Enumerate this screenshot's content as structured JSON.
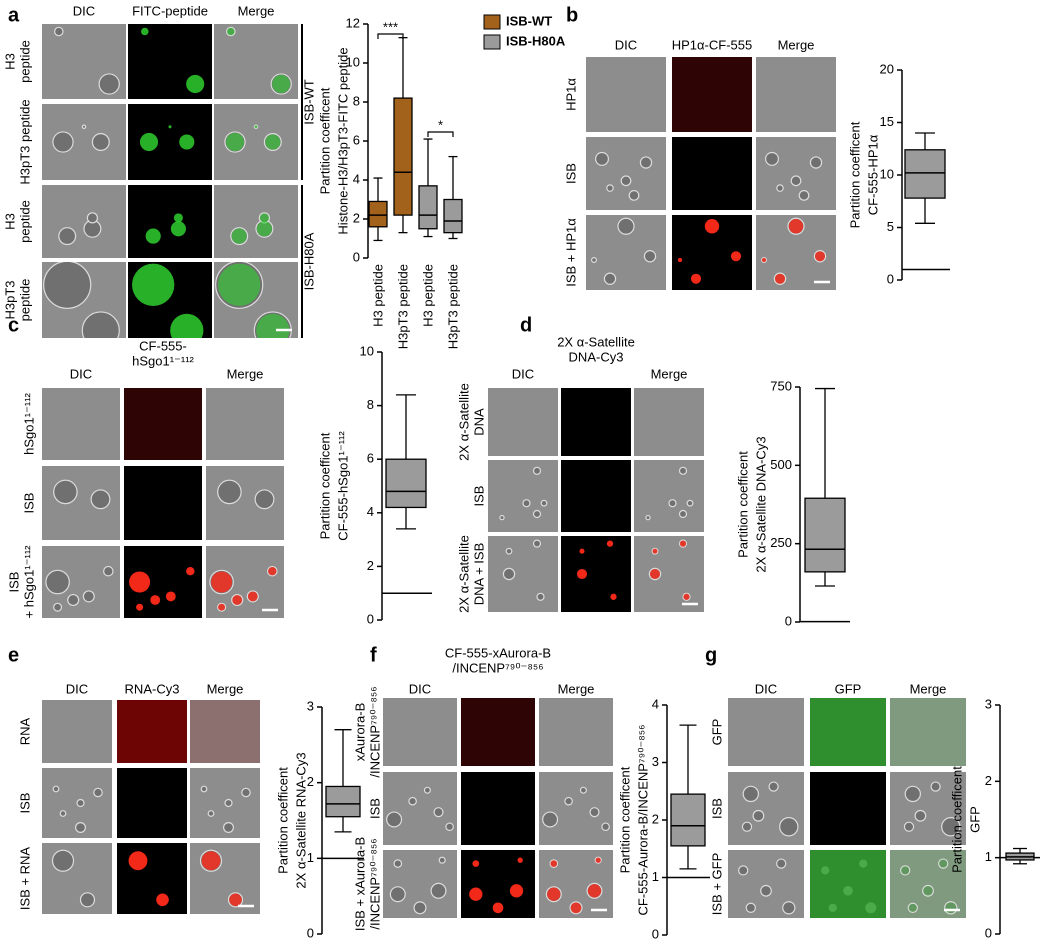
{
  "panels": [
    {
      "letter": "a",
      "columns": [
        [
          "DIC"
        ],
        [
          "FITC-peptide"
        ],
        [
          "Merge"
        ]
      ],
      "rows": [
        [
          "H3",
          "peptide"
        ],
        [
          "H3pT3 peptide"
        ],
        [
          "H3",
          "peptide"
        ],
        [
          "H3pT3",
          "peptide"
        ]
      ],
      "groups": [
        "ISB-WT",
        "ISB-H80A"
      ]
    },
    {
      "letter": "b",
      "columns": [
        [
          "DIC"
        ],
        [
          "HP1α-CF-555"
        ],
        [
          "Merge"
        ]
      ],
      "rows": [
        [
          "HP1α"
        ],
        [
          "ISB"
        ],
        [
          "ISB + HP1α"
        ]
      ]
    },
    {
      "letter": "c",
      "columns": [
        [
          "DIC"
        ],
        [
          "CF-555-",
          "hSgo1¹⁻¹¹²"
        ],
        [
          "Merge"
        ]
      ],
      "rows": [
        [
          "hSgo1¹⁻¹¹²"
        ],
        [
          "ISB"
        ],
        [
          "ISB",
          "+ hSgo1¹⁻¹¹²"
        ]
      ]
    },
    {
      "letter": "d",
      "columns": [
        [
          "DIC"
        ],
        [
          "2X α-Satellite",
          "DNA-Cy3"
        ],
        [
          "Merge"
        ]
      ],
      "rows": [
        [
          "2X α-Satellite",
          "DNA"
        ],
        [
          "ISB"
        ],
        [
          "2X α-Satellite",
          "DNA + ISB"
        ]
      ]
    },
    {
      "letter": "e",
      "columns": [
        [
          "DIC"
        ],
        [
          "RNA-Cy3"
        ],
        [
          "Merge"
        ]
      ],
      "rows": [
        [
          "RNA"
        ],
        [
          "ISB"
        ],
        [
          "ISB + RNA"
        ]
      ]
    },
    {
      "letter": "f",
      "columns": [
        [
          "DIC"
        ],
        [
          "CF-555-xAurora-B",
          "/INCENP⁷⁹⁰⁻⁸⁵⁶"
        ],
        [
          "Merge"
        ]
      ],
      "rows": [
        [
          "xAurora-B",
          "/INCENP⁷⁹⁰⁻⁸⁵⁶"
        ],
        [
          "ISB"
        ],
        [
          "ISB + xAurora-B",
          "/INCENP⁷⁹⁰⁻⁸⁵⁶"
        ]
      ]
    },
    {
      "letter": "g",
      "columns": [
        [
          "DIC"
        ],
        [
          "GFP"
        ],
        [
          "Merge"
        ]
      ],
      "rows": [
        [
          "GFP"
        ],
        [
          "ISB"
        ],
        [
          "ISB + GFP"
        ]
      ]
    }
  ],
  "chart_data": [
    {
      "type": "box",
      "ylabel": [
        "Partition coefficent",
        "Histone-H3/H3pT3-FITC peptide"
      ],
      "ylim": [
        0,
        12
      ],
      "yticks": [
        0,
        2,
        4,
        6,
        8,
        10,
        12
      ],
      "categories": [
        "H3 peptide",
        "H3pT3 peptide",
        "H3 peptide",
        "H3pT3 peptide"
      ],
      "legend": "right",
      "annotations": [
        "***",
        "*"
      ],
      "series": [
        {
          "name": "ISB-WT",
          "color": "#a3621c",
          "boxes": [
            {
              "min": 0.9,
              "q1": 1.6,
              "median": 2.2,
              "q3": 2.9,
              "max": 4.1
            },
            {
              "min": 1.3,
              "q1": 2.2,
              "median": 4.4,
              "q3": 8.2,
              "max": 11.3
            },
            null,
            null
          ]
        },
        {
          "name": "ISB-H80A",
          "color": "#9b9b9b",
          "boxes": [
            null,
            null,
            {
              "min": 1.1,
              "q1": 1.5,
              "median": 2.2,
              "q3": 3.7,
              "max": 6.1
            },
            {
              "min": 1.0,
              "q1": 1.3,
              "median": 1.9,
              "q3": 3.0,
              "max": 5.2
            }
          ]
        }
      ]
    },
    {
      "type": "box",
      "ylabel": [
        "Partition coefficent",
        "CF-555-HP1α"
      ],
      "ylim": [
        0,
        20
      ],
      "yticks": [
        0,
        5,
        10,
        15,
        20
      ],
      "reference_line": 1,
      "color": "#9b9b9b",
      "boxes": [
        {
          "min": 5.4,
          "q1": 7.8,
          "median": 10.2,
          "q3": 12.4,
          "max": 14
        }
      ]
    },
    {
      "type": "box",
      "ylabel": [
        "Partition coefficent",
        "CF-555-hSgo1¹⁻¹¹²"
      ],
      "ylim": [
        0,
        10
      ],
      "yticks": [
        0,
        2,
        4,
        6,
        8,
        10
      ],
      "reference_line": 1,
      "color": "#9b9b9b",
      "boxes": [
        {
          "min": 3.4,
          "q1": 4.2,
          "median": 4.8,
          "q3": 6.0,
          "max": 8.4
        }
      ]
    },
    {
      "type": "box",
      "ylabel": [
        "Partition coefficent",
        "2X α-Satellite DNA-Cy3"
      ],
      "ylim": [
        0,
        750
      ],
      "yticks": [
        0,
        250,
        500,
        750
      ],
      "reference_line": 1,
      "color": "#9b9b9b",
      "boxes": [
        {
          "min": 115,
          "q1": 160,
          "median": 232,
          "q3": 395,
          "max": 745
        }
      ]
    },
    {
      "type": "box",
      "ylabel": [
        "Partition coefficent",
        "2X α-Satellite RNA-Cy3"
      ],
      "ylim": [
        0,
        3
      ],
      "yticks": [
        0,
        1,
        2,
        3
      ],
      "reference_line": 1,
      "color": "#9b9b9b",
      "boxes": [
        {
          "min": 1.35,
          "q1": 1.55,
          "median": 1.72,
          "q3": 1.95,
          "max": 2.7
        }
      ]
    },
    {
      "type": "box",
      "ylabel": [
        "Partition coefficent",
        "CF-555-Aurora-B/INCENP⁷⁹⁰⁻⁸⁵⁶"
      ],
      "ylim": [
        0,
        4
      ],
      "yticks": [
        0,
        1,
        2,
        3,
        4
      ],
      "reference_line": 1,
      "color": "#9b9b9b",
      "boxes": [
        {
          "min": 1.15,
          "q1": 1.55,
          "median": 1.9,
          "q3": 2.45,
          "max": 3.65
        }
      ]
    },
    {
      "type": "box",
      "ylabel": [
        "Partition coefficent",
        "GFP"
      ],
      "ylim": [
        0,
        3
      ],
      "yticks": [
        0,
        1,
        2,
        3
      ],
      "reference_line": 1,
      "color": "#9b9b9b",
      "boxes": [
        {
          "min": 0.92,
          "q1": 0.97,
          "median": 1.01,
          "q3": 1.06,
          "max": 1.12
        }
      ]
    }
  ]
}
